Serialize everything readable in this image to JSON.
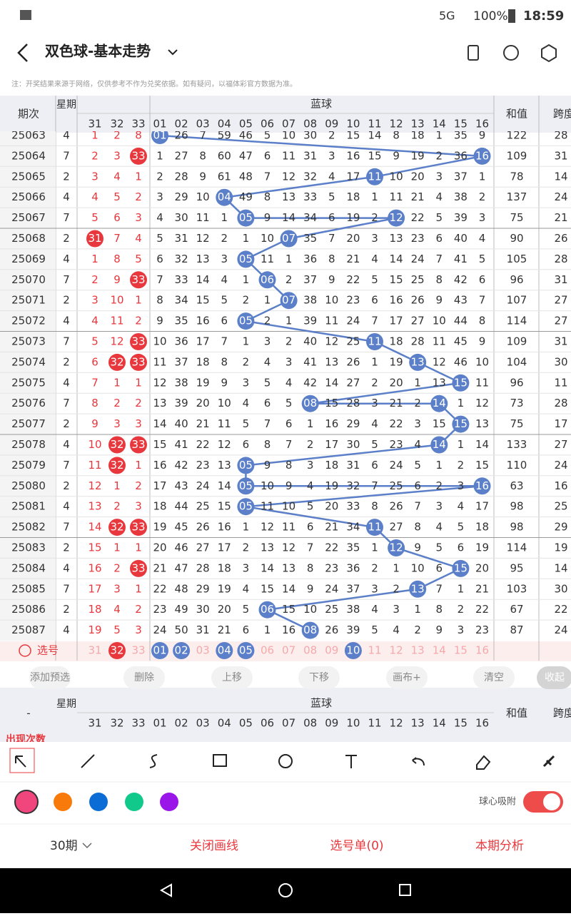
{
  "status": {
    "network": "5G",
    "battery": "100%",
    "time": "18:59"
  },
  "header": {
    "title": "双色球-基本走势"
  },
  "note": "注：开奖结果来源于网络，仅供参考不作为兑奖依据。如有疑问，以福体彩官方数据为准。",
  "table": {
    "col_period": "期次",
    "col_weekday": "星期",
    "blue_label": "蓝球",
    "col_sum": "和值",
    "col_span": "跨度",
    "red_cols": [
      "31",
      "32",
      "33"
    ],
    "blue_cols": [
      "01",
      "02",
      "03",
      "04",
      "05",
      "06",
      "07",
      "08",
      "09",
      "10",
      "11",
      "12",
      "13",
      "14",
      "15",
      "16"
    ],
    "rows": [
      {
        "period": "25063",
        "weekday": "4",
        "red": [
          "1",
          "2",
          "8"
        ],
        "blue": [
          "01",
          "26",
          "7",
          "59",
          "46",
          "5",
          "10",
          "30",
          "2",
          "15",
          "14",
          "8",
          "18",
          "1",
          "35",
          "9"
        ],
        "sum": "122",
        "span": "28"
      },
      {
        "period": "25064",
        "weekday": "7",
        "red": [
          "2",
          "3",
          "33"
        ],
        "blue": [
          "1",
          "27",
          "8",
          "60",
          "47",
          "6",
          "11",
          "31",
          "3",
          "16",
          "15",
          "9",
          "19",
          "2",
          "36",
          "16"
        ],
        "sum": "109",
        "span": "31"
      },
      {
        "period": "25065",
        "weekday": "2",
        "red": [
          "3",
          "4",
          "1"
        ],
        "blue": [
          "2",
          "28",
          "9",
          "61",
          "48",
          "7",
          "12",
          "32",
          "4",
          "17",
          "11",
          "10",
          "20",
          "3",
          "37",
          "1"
        ],
        "sum": "78",
        "span": "14"
      },
      {
        "period": "25066",
        "weekday": "4",
        "red": [
          "4",
          "5",
          "2"
        ],
        "blue": [
          "3",
          "29",
          "10",
          "04",
          "49",
          "8",
          "13",
          "33",
          "5",
          "18",
          "1",
          "11",
          "21",
          "4",
          "38",
          "2"
        ],
        "sum": "137",
        "span": "24"
      },
      {
        "period": "25067",
        "weekday": "7",
        "red": [
          "5",
          "6",
          "3"
        ],
        "blue": [
          "4",
          "30",
          "11",
          "1",
          "05",
          "9",
          "14",
          "34",
          "6",
          "19",
          "2",
          "12",
          "22",
          "5",
          "39",
          "3"
        ],
        "sum": "75",
        "span": "21"
      },
      {
        "period": "25068",
        "weekday": "2",
        "red": [
          "31",
          "7",
          "4"
        ],
        "blue": [
          "5",
          "31",
          "12",
          "2",
          "1",
          "10",
          "07",
          "35",
          "7",
          "20",
          "3",
          "13",
          "23",
          "6",
          "40",
          "4"
        ],
        "sum": "90",
        "span": "26"
      },
      {
        "period": "25069",
        "weekday": "4",
        "red": [
          "1",
          "8",
          "5"
        ],
        "blue": [
          "6",
          "32",
          "13",
          "3",
          "05",
          "11",
          "1",
          "36",
          "8",
          "21",
          "4",
          "14",
          "24",
          "7",
          "41",
          "5"
        ],
        "sum": "105",
        "span": "28"
      },
      {
        "period": "25070",
        "weekday": "7",
        "red": [
          "2",
          "9",
          "33"
        ],
        "blue": [
          "7",
          "33",
          "14",
          "4",
          "1",
          "06",
          "2",
          "37",
          "9",
          "22",
          "5",
          "15",
          "25",
          "8",
          "42",
          "6"
        ],
        "sum": "96",
        "span": "31"
      },
      {
        "period": "25071",
        "weekday": "2",
        "red": [
          "3",
          "10",
          "1"
        ],
        "blue": [
          "8",
          "34",
          "15",
          "5",
          "2",
          "1",
          "07",
          "38",
          "10",
          "23",
          "6",
          "16",
          "26",
          "9",
          "43",
          "7"
        ],
        "sum": "107",
        "span": "27"
      },
      {
        "period": "25072",
        "weekday": "4",
        "red": [
          "4",
          "11",
          "2"
        ],
        "blue": [
          "9",
          "35",
          "16",
          "6",
          "05",
          "2",
          "1",
          "39",
          "11",
          "24",
          "7",
          "17",
          "27",
          "10",
          "44",
          "8"
        ],
        "sum": "114",
        "span": "27"
      },
      {
        "period": "25073",
        "weekday": "7",
        "red": [
          "5",
          "12",
          "33"
        ],
        "blue": [
          "10",
          "36",
          "17",
          "7",
          "1",
          "3",
          "2",
          "40",
          "12",
          "25",
          "11",
          "18",
          "28",
          "11",
          "45",
          "9"
        ],
        "sum": "109",
        "span": "31"
      },
      {
        "period": "25074",
        "weekday": "2",
        "red": [
          "6",
          "32",
          "33"
        ],
        "blue": [
          "11",
          "37",
          "18",
          "8",
          "2",
          "4",
          "3",
          "41",
          "13",
          "26",
          "1",
          "19",
          "13",
          "12",
          "46",
          "10"
        ],
        "sum": "104",
        "span": "30"
      },
      {
        "period": "25075",
        "weekday": "4",
        "red": [
          "7",
          "1",
          "1"
        ],
        "blue": [
          "12",
          "38",
          "19",
          "9",
          "3",
          "5",
          "4",
          "42",
          "14",
          "27",
          "2",
          "20",
          "1",
          "13",
          "15",
          "11"
        ],
        "sum": "96",
        "span": "11"
      },
      {
        "period": "25076",
        "weekday": "7",
        "red": [
          "8",
          "2",
          "2"
        ],
        "blue": [
          "13",
          "39",
          "20",
          "10",
          "4",
          "6",
          "5",
          "08",
          "15",
          "28",
          "3",
          "21",
          "2",
          "14",
          "1",
          "12"
        ],
        "sum": "73",
        "span": "28"
      },
      {
        "period": "25077",
        "weekday": "2",
        "red": [
          "9",
          "3",
          "3"
        ],
        "blue": [
          "14",
          "40",
          "21",
          "11",
          "5",
          "7",
          "6",
          "1",
          "16",
          "29",
          "4",
          "22",
          "3",
          "15",
          "15",
          "13"
        ],
        "sum": "75",
        "span": "17"
      },
      {
        "period": "25078",
        "weekday": "4",
        "red": [
          "10",
          "32",
          "33"
        ],
        "blue": [
          "15",
          "41",
          "22",
          "12",
          "6",
          "8",
          "7",
          "2",
          "17",
          "30",
          "5",
          "23",
          "4",
          "14",
          "1",
          "14"
        ],
        "sum": "133",
        "span": "27"
      },
      {
        "period": "25079",
        "weekday": "7",
        "red": [
          "11",
          "32",
          "1"
        ],
        "blue": [
          "16",
          "42",
          "23",
          "13",
          "05",
          "9",
          "8",
          "3",
          "18",
          "31",
          "6",
          "24",
          "5",
          "1",
          "2",
          "15"
        ],
        "sum": "110",
        "span": "24"
      },
      {
        "period": "25080",
        "weekday": "2",
        "red": [
          "12",
          "1",
          "2"
        ],
        "blue": [
          "17",
          "43",
          "24",
          "14",
          "05",
          "10",
          "9",
          "4",
          "19",
          "32",
          "7",
          "25",
          "6",
          "2",
          "3",
          "16"
        ],
        "sum": "63",
        "span": "16"
      },
      {
        "period": "25081",
        "weekday": "4",
        "red": [
          "13",
          "2",
          "3"
        ],
        "blue": [
          "18",
          "44",
          "25",
          "15",
          "05",
          "11",
          "10",
          "5",
          "20",
          "33",
          "8",
          "26",
          "7",
          "3",
          "4",
          "17"
        ],
        "sum": "98",
        "span": "25"
      },
      {
        "period": "25082",
        "weekday": "7",
        "red": [
          "14",
          "32",
          "33"
        ],
        "blue": [
          "19",
          "45",
          "26",
          "16",
          "1",
          "12",
          "11",
          "6",
          "21",
          "34",
          "11",
          "27",
          "8",
          "4",
          "5",
          "18"
        ],
        "sum": "98",
        "span": "29"
      },
      {
        "period": "25083",
        "weekday": "2",
        "red": [
          "15",
          "1",
          "1"
        ],
        "blue": [
          "20",
          "46",
          "27",
          "17",
          "2",
          "13",
          "12",
          "7",
          "22",
          "35",
          "1",
          "12",
          "9",
          "5",
          "6",
          "19"
        ],
        "sum": "114",
        "span": "19"
      },
      {
        "period": "25084",
        "weekday": "4",
        "red": [
          "16",
          "2",
          "33"
        ],
        "blue": [
          "21",
          "47",
          "28",
          "18",
          "3",
          "14",
          "13",
          "8",
          "23",
          "36",
          "2",
          "1",
          "10",
          "6",
          "15",
          "20"
        ],
        "sum": "95",
        "span": "14"
      },
      {
        "period": "25085",
        "weekday": "7",
        "red": [
          "17",
          "3",
          "1"
        ],
        "blue": [
          "22",
          "48",
          "29",
          "19",
          "4",
          "15",
          "14",
          "9",
          "24",
          "37",
          "3",
          "2",
          "13",
          "7",
          "1",
          "21"
        ],
        "sum": "103",
        "span": "30"
      },
      {
        "period": "25086",
        "weekday": "2",
        "red": [
          "18",
          "4",
          "2"
        ],
        "blue": [
          "23",
          "49",
          "30",
          "20",
          "5",
          "06",
          "15",
          "10",
          "25",
          "38",
          "4",
          "3",
          "1",
          "8",
          "2",
          "22"
        ],
        "sum": "67",
        "span": "22"
      },
      {
        "period": "25087",
        "weekday": "4",
        "red": [
          "19",
          "5",
          "3"
        ],
        "blue": [
          "24",
          "50",
          "31",
          "21",
          "6",
          "1",
          "16",
          "08",
          "26",
          "39",
          "5",
          "4",
          "2",
          "9",
          "3",
          "23"
        ],
        "sum": "87",
        "span": "24"
      }
    ]
  },
  "selection": {
    "label": "选号",
    "selected_red": [
      "32"
    ],
    "selected_blue": [
      "01",
      "02",
      "04",
      "05",
      "10"
    ]
  },
  "actions": [
    "添加预选",
    "删除",
    "上移",
    "下移",
    "画布+",
    "清空",
    "收起"
  ],
  "lower_header": {
    "dash": "-",
    "row_label": "出现次数"
  },
  "snap_label": "球心吸附",
  "bottom": {
    "periods": "30期",
    "close": "关闭画线",
    "ticket": "选号单(0)",
    "analysis": "本期分析"
  }
}
